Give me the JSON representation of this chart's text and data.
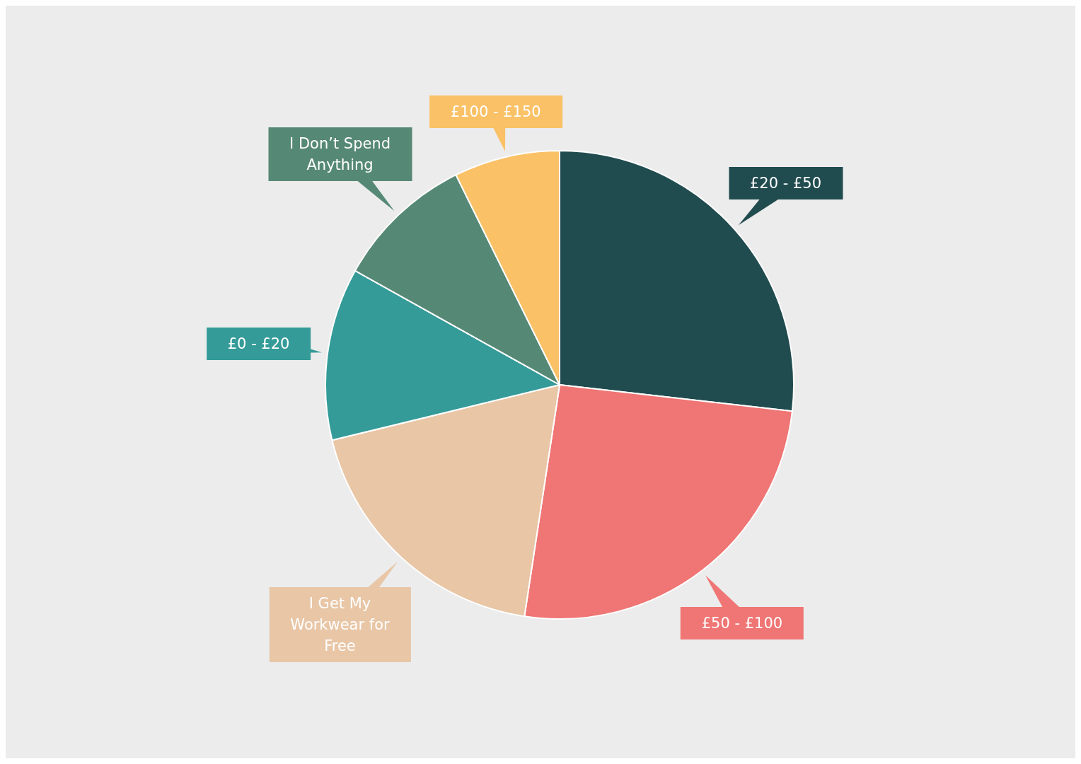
{
  "chart_data": {
    "type": "pie",
    "categories": [
      "£20 - £50",
      "£50 - £100",
      "I Get My Workwear for Free",
      "£0 - £20",
      "I Don’t Spend Anything",
      "£100 - £150"
    ],
    "values": [
      26.8,
      25.6,
      18.8,
      11.9,
      9.6,
      7.3
    ],
    "colors": [
      "#214c4f",
      "#ef7674",
      "#e8c6a6",
      "#349b98",
      "#568876",
      "#fac166"
    ],
    "legend": false
  }
}
